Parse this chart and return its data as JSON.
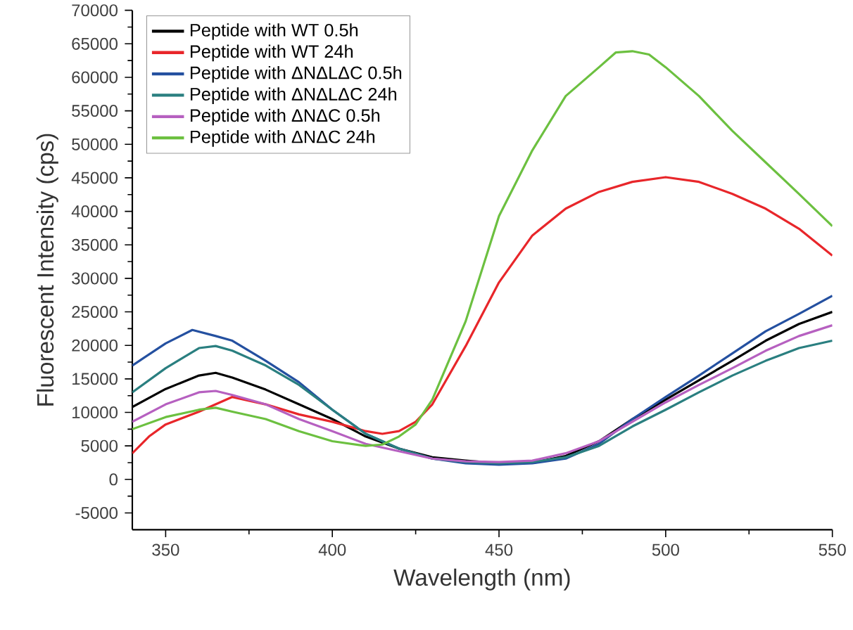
{
  "chart_data": {
    "type": "line",
    "xlabel": "Wavelength (nm)",
    "ylabel": "Fluorescent Intensity (cps)",
    "xlim": [
      340,
      550
    ],
    "ylim": [
      -7500,
      70000
    ],
    "xticks": [
      350,
      400,
      450,
      500,
      550
    ],
    "yticks": [
      -5000,
      0,
      5000,
      10000,
      15000,
      20000,
      25000,
      30000,
      35000,
      40000,
      45000,
      50000,
      55000,
      60000,
      65000,
      70000
    ],
    "legend": "top left",
    "x": [
      340,
      350,
      360,
      365,
      370,
      380,
      390,
      400,
      410,
      420,
      430,
      440,
      450,
      460,
      470,
      480,
      490,
      500,
      510,
      520,
      530,
      540,
      550
    ],
    "series": [
      {
        "name": "Peptide with WT 0.5h",
        "color": "#000000",
        "values": [
          10800,
          13500,
          15500,
          15900,
          15200,
          13400,
          11200,
          9000,
          6400,
          4600,
          3300,
          2800,
          2400,
          2500,
          3500,
          5700,
          9000,
          11900,
          14800,
          17700,
          20700,
          23200,
          25000
        ]
      },
      {
        "name": "Peptide with WT 24h",
        "color": "#e8262a",
        "x": [
          340,
          345,
          350,
          360,
          370,
          380,
          390,
          400,
          410,
          415,
          420,
          425,
          430,
          440,
          450,
          460,
          470,
          480,
          490,
          500,
          510,
          520,
          530,
          540,
          550
        ],
        "values": [
          3900,
          6400,
          8200,
          10100,
          12300,
          11200,
          9700,
          8600,
          7200,
          6800,
          7200,
          8600,
          11200,
          19900,
          29400,
          36400,
          40400,
          42900,
          44400,
          45100,
          44400,
          42600,
          40400,
          37400,
          33400
        ]
      },
      {
        "name": "Peptide with ΔNΔLΔC 0.5h",
        "color": "#2450a0",
        "x": [
          340,
          350,
          358,
          365,
          370,
          380,
          390,
          400,
          410,
          420,
          430,
          440,
          450,
          460,
          470,
          480,
          490,
          500,
          510,
          520,
          530,
          540,
          550
        ],
        "values": [
          17000,
          20300,
          22300,
          21400,
          20700,
          17700,
          14500,
          10400,
          6800,
          4600,
          3100,
          2400,
          2200,
          2400,
          3100,
          5300,
          9000,
          12300,
          15500,
          18800,
          22100,
          24700,
          27400
        ]
      },
      {
        "name": "Peptide with ΔNΔLΔC 24h",
        "color": "#2a7f80",
        "values": [
          13000,
          16600,
          19600,
          19900,
          19200,
          17000,
          14100,
          10400,
          6800,
          4600,
          3100,
          2600,
          2400,
          2600,
          3300,
          5000,
          7900,
          10400,
          13000,
          15500,
          17700,
          19600,
          20700
        ]
      },
      {
        "name": "Peptide with ΔNΔC 0.5h",
        "color": "#b660c0",
        "values": [
          8600,
          11200,
          13000,
          13200,
          12600,
          11200,
          9000,
          7200,
          5300,
          4200,
          3100,
          2700,
          2600,
          2800,
          3900,
          5700,
          8600,
          11500,
          14100,
          16600,
          19200,
          21400,
          23000
        ]
      },
      {
        "name": "Peptide with ΔNΔC 24h",
        "color": "#6cc040",
        "x": [
          340,
          350,
          360,
          365,
          370,
          380,
          390,
          400,
          410,
          415,
          420,
          425,
          430,
          440,
          450,
          460,
          470,
          480,
          485,
          490,
          495,
          500,
          510,
          520,
          530,
          540,
          550
        ],
        "values": [
          7500,
          9300,
          10400,
          10700,
          10100,
          9000,
          7200,
          5700,
          5000,
          5200,
          6400,
          8200,
          11900,
          23600,
          39300,
          49100,
          57200,
          61500,
          63700,
          63900,
          63400,
          61500,
          57200,
          52000,
          47300,
          42600,
          37800
        ]
      }
    ]
  }
}
